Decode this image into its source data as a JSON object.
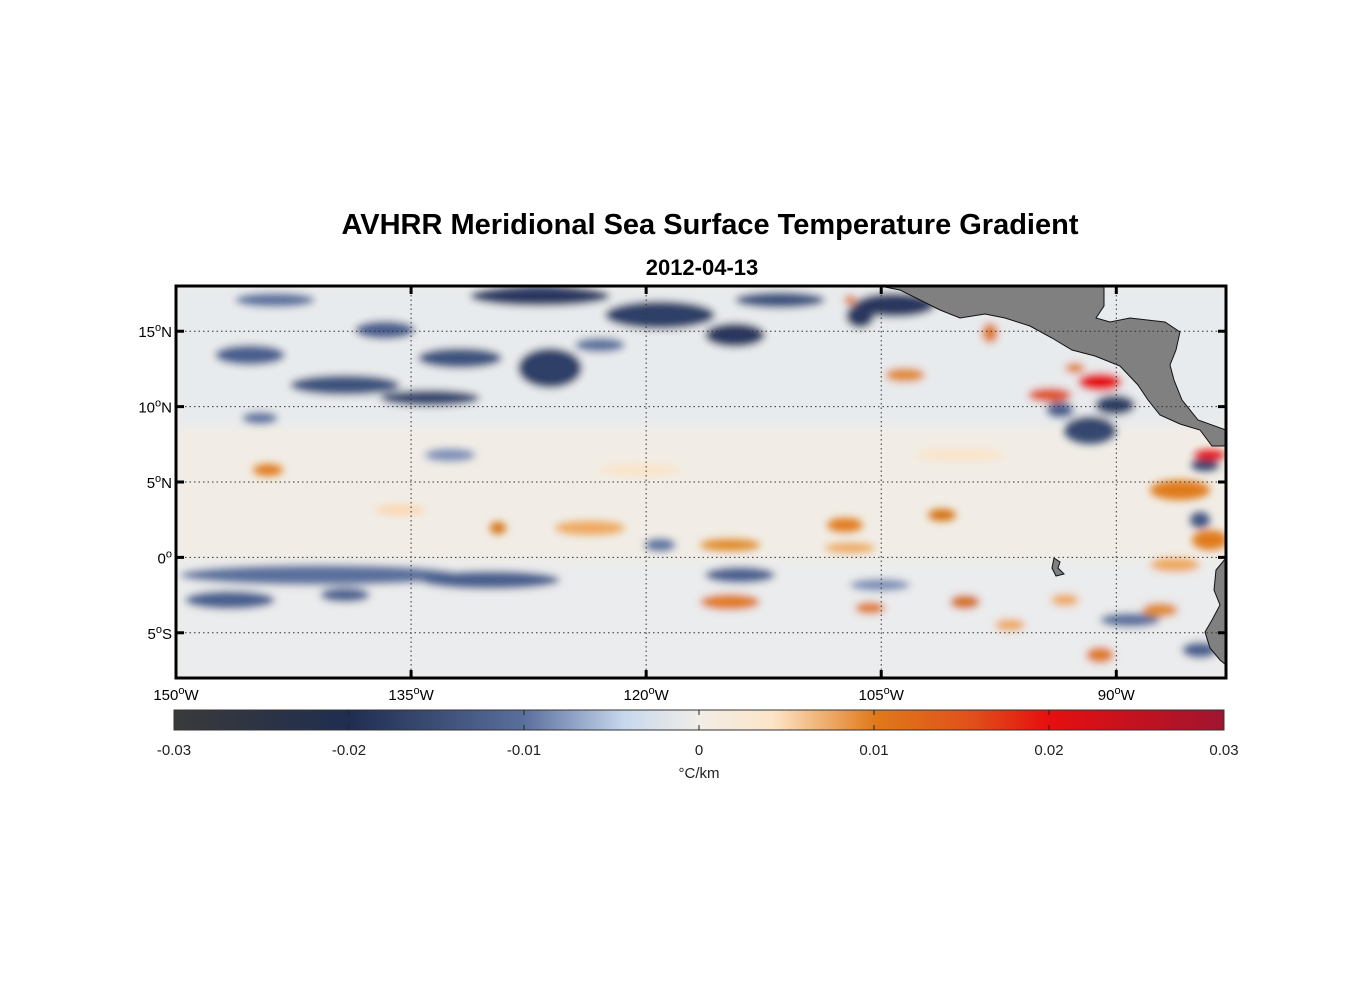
{
  "figure": {
    "title": "AVHRR Meridional Sea Surface Temperature Gradient",
    "subtitle": "2012-04-13"
  },
  "map": {
    "lon_range": [
      -150,
      -83
    ],
    "lat_range": [
      -8,
      18
    ],
    "grid": true,
    "land_color": "#808080",
    "lon_ticks": [
      {
        "value": -150,
        "num": "150",
        "hemi": "W"
      },
      {
        "value": -135,
        "num": "135",
        "hemi": "W"
      },
      {
        "value": -120,
        "num": "120",
        "hemi": "W"
      },
      {
        "value": -105,
        "num": "105",
        "hemi": "W"
      },
      {
        "value": -90,
        "num": "90",
        "hemi": "W"
      }
    ],
    "lat_ticks": [
      {
        "value": 15,
        "num": "15",
        "hemi": "N"
      },
      {
        "value": 10,
        "num": "10",
        "hemi": "N"
      },
      {
        "value": 5,
        "num": "5",
        "hemi": "N"
      },
      {
        "value": 0,
        "num": "0",
        "hemi": ""
      },
      {
        "value": -5,
        "num": "5",
        "hemi": "S"
      }
    ],
    "degree_symbol": "o"
  },
  "colorbar": {
    "range": [
      -0.03,
      0.03
    ],
    "ticks": [
      "-0.03",
      "-0.02",
      "-0.01",
      "0",
      "0.01",
      "0.02",
      "0.03"
    ],
    "label": "°C/km",
    "colors": [
      "#3a3a3a",
      "#1f2d50",
      "#5a6f9c",
      "#c8d8ee",
      "#f1ede6",
      "#fde5c8",
      "#e07a1a",
      "#e0501a",
      "#e60f0f",
      "#a01530"
    ]
  }
}
